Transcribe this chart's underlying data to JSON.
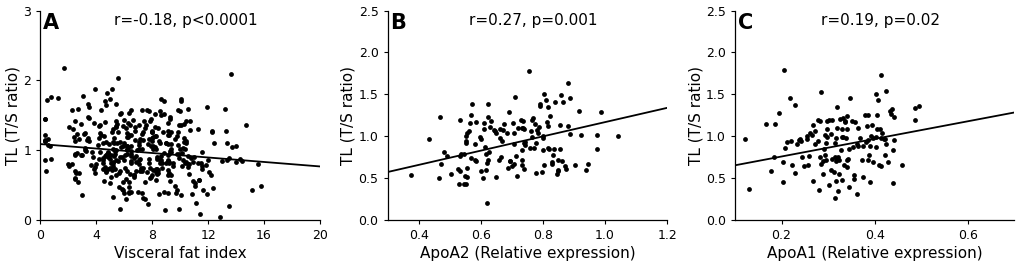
{
  "panels": [
    {
      "label": "A",
      "stat_text": "r=-0.18, p<0.0001",
      "xlabel": "Visceral fat index",
      "ylabel": "TL (T/S ratio)",
      "xlim": [
        0,
        20
      ],
      "ylim": [
        0,
        3
      ],
      "xticks": [
        0,
        4,
        8,
        12,
        16,
        20
      ],
      "yticks": [
        0,
        1,
        2,
        3
      ],
      "n": 394,
      "slope": -0.016,
      "intercept": 1.09,
      "x_line_start": 0,
      "x_line_end": 20,
      "seed": 42,
      "x_mean": 7.0,
      "x_std": 3.2,
      "y_mean": 1.0,
      "y_std": 0.38,
      "r": -0.18,
      "x_clip_min": 0.3,
      "x_clip_max": 19.5,
      "y_clip_min": 0.05,
      "y_clip_max": 2.9,
      "int_yticks": true
    },
    {
      "label": "B",
      "stat_text": "r=0.27, p=0.001",
      "xlabel": "ApoA2 (Relative expression)",
      "ylabel": "TL (T/S ratio)",
      "xlim": [
        0.3,
        1.2
      ],
      "ylim": [
        0.0,
        2.5
      ],
      "xticks": [
        0.4,
        0.6,
        0.8,
        1.0,
        1.2
      ],
      "yticks": [
        0.0,
        0.5,
        1.0,
        1.5,
        2.0,
        2.5
      ],
      "n": 144,
      "slope": 0.85,
      "intercept": 0.32,
      "x_line_start": 0.3,
      "x_line_end": 1.2,
      "seed": 7,
      "x_mean": 0.7,
      "x_std": 0.14,
      "y_mean": 0.92,
      "y_std": 0.3,
      "r": 0.27,
      "x_clip_min": 0.32,
      "x_clip_max": 1.18,
      "y_clip_min": 0.1,
      "y_clip_max": 2.4,
      "int_yticks": false
    },
    {
      "label": "C",
      "stat_text": "r=0.19, p=0.02",
      "xlabel": "ApoA1 (Relative expression)",
      "ylabel": "TL (T/S ratio)",
      "xlim": [
        0.1,
        0.7
      ],
      "ylim": [
        0.0,
        2.5
      ],
      "xticks": [
        0.2,
        0.4,
        0.6
      ],
      "yticks": [
        0.0,
        0.5,
        1.0,
        1.5,
        2.0,
        2.5
      ],
      "n": 144,
      "slope": 1.05,
      "intercept": 0.55,
      "x_line_start": 0.1,
      "x_line_end": 0.7,
      "seed": 13,
      "x_mean": 0.32,
      "x_std": 0.085,
      "y_mean": 0.9,
      "y_std": 0.3,
      "r": 0.19,
      "x_clip_min": 0.12,
      "x_clip_max": 0.68,
      "y_clip_min": 0.1,
      "y_clip_max": 2.4,
      "int_yticks": false
    }
  ],
  "bg_color": "#ffffff",
  "dot_color": "#000000",
  "line_color": "#000000",
  "dot_size": 12,
  "dot_alpha": 1.0,
  "label_fontsize": 15,
  "stat_fontsize": 11,
  "tick_fontsize": 9,
  "axis_label_fontsize": 11
}
